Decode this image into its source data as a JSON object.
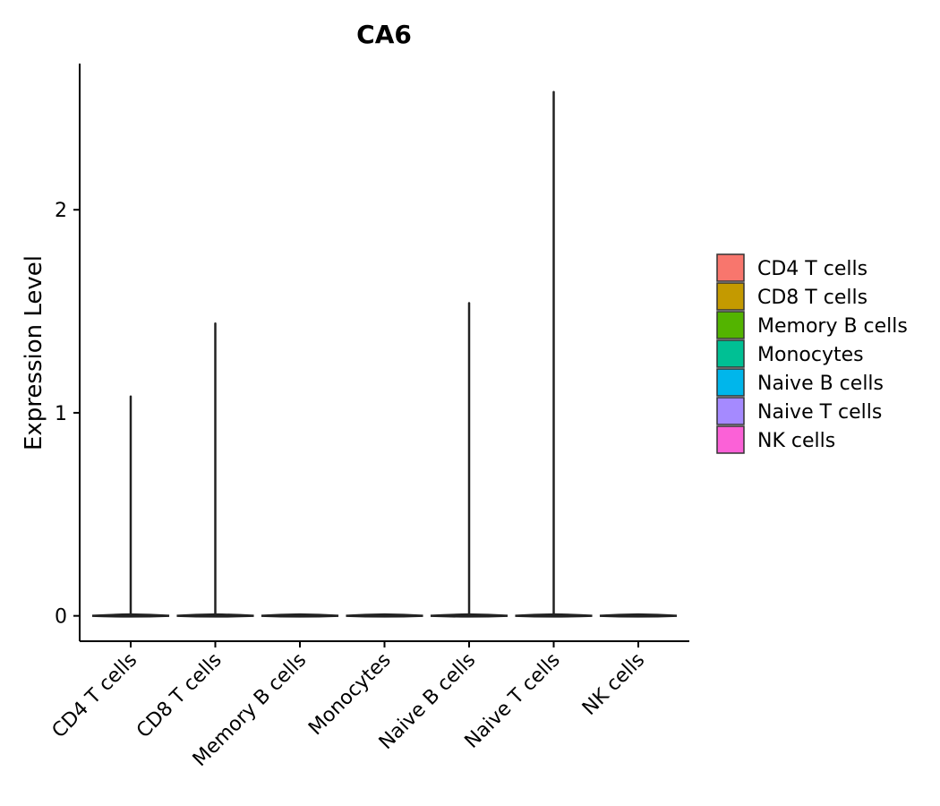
{
  "chart_data": {
    "type": "violin",
    "title": "CA6",
    "xlabel": "",
    "ylabel": "Expression Level",
    "ylim": [
      -0.125,
      2.72
    ],
    "yticks": [
      0,
      1,
      2
    ],
    "categories": [
      "CD4 T cells",
      "CD8 T cells",
      "Memory B cells",
      "Monocytes",
      "Naive B cells",
      "Naive T cells",
      "NK cells"
    ],
    "max_values": [
      1.08,
      1.44,
      0.0,
      0.0,
      1.54,
      2.58,
      0.0
    ],
    "min_values": [
      0,
      0,
      0,
      0,
      0,
      0,
      0
    ],
    "colors": [
      "#F8766D",
      "#C49A00",
      "#53B400",
      "#00C094",
      "#00B6EB",
      "#A58AFF",
      "#FB61D7"
    ],
    "legend": {
      "position": "right",
      "entries": [
        "CD4 T cells",
        "CD8 T cells",
        "Memory B cells",
        "Monocytes",
        "Naive B cells",
        "Naive T cells",
        "NK cells"
      ]
    }
  }
}
